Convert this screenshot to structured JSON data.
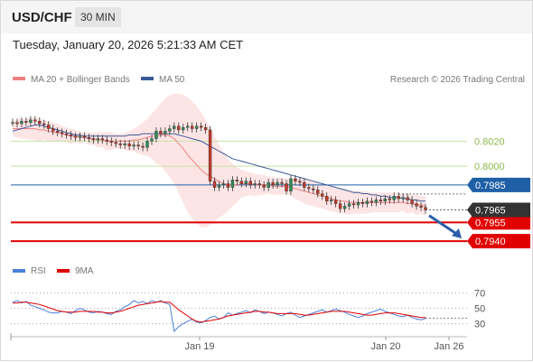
{
  "header": {
    "symbol": "USD/CHF",
    "timeframe": "30 MIN",
    "datetime": "Tuesday, January 20, 2026 5:21:33 AM CET"
  },
  "legend": {
    "ma20_bb": "MA 20 + Bollinger Bands",
    "ma50": "MA 50",
    "copyright": "Research © 2026 Trading Central",
    "rsi": "RSI",
    "rsi_ma": "9MA"
  },
  "colors": {
    "ma20": "#f08080",
    "bands": "#fcdcdc",
    "ma50": "#3a5a98",
    "resistance": "#1f5fa6",
    "support": "#e00000",
    "target_green": "#c5e3a5",
    "arrow": "#2c5fa8",
    "rsi": "#4a7fd8",
    "rsi_ma": "#e00000"
  },
  "chart_data": [
    {
      "type": "candlestick",
      "title": "USD/CHF",
      "x_tick_labels": [
        "Jan 19",
        "Jan 20",
        "Jan 26"
      ],
      "ylim": [
        0.793,
        0.806
      ],
      "price_levels": [
        {
          "value": 0.802,
          "label": "0.8020",
          "kind": "target"
        },
        {
          "value": 0.8,
          "label": "0.8000",
          "kind": "target"
        },
        {
          "value": 0.7985,
          "label": "0.7985",
          "kind": "resistance"
        },
        {
          "value": 0.7955,
          "label": "0.7955",
          "kind": "support"
        },
        {
          "value": 0.794,
          "label": "0.7940",
          "kind": "support"
        }
      ],
      "last_price": {
        "value": 0.7965,
        "label": "0.7965"
      },
      "forecast_arrow": {
        "from": 0.7962,
        "to": 0.794
      },
      "closes": [
        0.8035,
        0.8034,
        0.8036,
        0.8035,
        0.8037,
        0.8036,
        0.8034,
        0.8033,
        0.803,
        0.8028,
        0.8027,
        0.8026,
        0.8025,
        0.8024,
        0.8023,
        0.8024,
        0.8023,
        0.8022,
        0.8021,
        0.8022,
        0.8021,
        0.802,
        0.8019,
        0.8018,
        0.8017,
        0.8018,
        0.8016,
        0.8017,
        0.8016,
        0.8015,
        0.802,
        0.8022,
        0.8028,
        0.8026,
        0.8028,
        0.803,
        0.8032,
        0.8029,
        0.8031,
        0.8032,
        0.803,
        0.8032,
        0.8031,
        0.8029,
        0.7988,
        0.7983,
        0.7985,
        0.7986,
        0.7983,
        0.7989,
        0.7988,
        0.7986,
        0.7988,
        0.7985,
        0.7986,
        0.7985,
        0.7983,
        0.7987,
        0.7985,
        0.7987,
        0.7986,
        0.798,
        0.799,
        0.7988,
        0.7987,
        0.7983,
        0.7982,
        0.7981,
        0.7978,
        0.7976,
        0.7972,
        0.7973,
        0.797,
        0.7966,
        0.7968,
        0.797,
        0.7969,
        0.7971,
        0.797,
        0.7972,
        0.7971,
        0.7973,
        0.7972,
        0.7974,
        0.7973,
        0.7976,
        0.7974,
        0.7975,
        0.7973,
        0.797,
        0.7968,
        0.7967,
        0.7965
      ],
      "ma20": [
        0.803,
        0.803,
        0.803,
        0.803,
        0.803,
        0.803,
        0.8029,
        0.8029,
        0.8028,
        0.8027,
        0.8027,
        0.8026,
        0.8025,
        0.8024,
        0.8024,
        0.8023,
        0.8023,
        0.8022,
        0.8022,
        0.8021,
        0.8021,
        0.802,
        0.802,
        0.802,
        0.802,
        0.802,
        0.802,
        0.8021,
        0.8021,
        0.8022,
        0.8023,
        0.8024,
        0.8024,
        0.8025,
        0.8025,
        0.8024,
        0.8022,
        0.8018,
        0.8014,
        0.8009,
        0.8005,
        0.8001,
        0.7997,
        0.7994,
        0.7992,
        0.799,
        0.7988,
        0.7986,
        0.7985,
        0.7985,
        0.7985,
        0.7986,
        0.7986,
        0.7986,
        0.7985,
        0.7985,
        0.7985,
        0.7985,
        0.7984,
        0.7984,
        0.7984,
        0.7984,
        0.7983,
        0.7982,
        0.7981,
        0.798,
        0.7979,
        0.7978,
        0.7977,
        0.7976,
        0.7975,
        0.7974,
        0.7973,
        0.7972,
        0.7972,
        0.7971,
        0.7971,
        0.7971,
        0.7971,
        0.7971,
        0.7971,
        0.7971,
        0.7971,
        0.7971,
        0.7971,
        0.7971,
        0.7971,
        0.7971,
        0.797,
        0.797,
        0.7969,
        0.7969,
        0.7968
      ],
      "ma50": [
        0.8028,
        0.8029,
        0.803,
        0.8031,
        0.8032,
        0.8033,
        0.8033,
        0.8032,
        0.8031,
        0.803,
        0.8029,
        0.8028,
        0.8027,
        0.8026,
        0.8025,
        0.8025,
        0.8024,
        0.8024,
        0.8024,
        0.8024,
        0.8024,
        0.8024,
        0.8024,
        0.8024,
        0.8024,
        0.8024,
        0.8025,
        0.8025,
        0.8025,
        0.8026,
        0.8026,
        0.8026,
        0.8026,
        0.8026,
        0.8026,
        0.8026,
        0.8026,
        0.8025,
        0.8024,
        0.8023,
        0.8022,
        0.8021,
        0.802,
        0.8018,
        0.8016,
        0.8014,
        0.8012,
        0.801,
        0.8008,
        0.8006,
        0.8005,
        0.8004,
        0.8003,
        0.8002,
        0.8001,
        0.8,
        0.7999,
        0.7998,
        0.7997,
        0.7996,
        0.7995,
        0.7994,
        0.7993,
        0.7992,
        0.7991,
        0.799,
        0.7989,
        0.7988,
        0.7987,
        0.7986,
        0.7985,
        0.7984,
        0.7983,
        0.7982,
        0.7981,
        0.798,
        0.7979,
        0.7979,
        0.7978,
        0.7978,
        0.7977,
        0.7977,
        0.7976,
        0.7976,
        0.7975,
        0.7975,
        0.7975,
        0.7974,
        0.7974,
        0.7973,
        0.7973,
        0.7972,
        0.7972
      ],
      "bb_upper": [
        0.8036,
        0.8037,
        0.8038,
        0.8038,
        0.8039,
        0.8039,
        0.8038,
        0.8037,
        0.8036,
        0.8035,
        0.8034,
        0.8032,
        0.8031,
        0.803,
        0.8029,
        0.8028,
        0.8027,
        0.8027,
        0.8027,
        0.8027,
        0.8027,
        0.8027,
        0.8027,
        0.8026,
        0.8026,
        0.8027,
        0.8028,
        0.803,
        0.8032,
        0.8035,
        0.8038,
        0.8042,
        0.8046,
        0.805,
        0.8054,
        0.8057,
        0.8058,
        0.8058,
        0.8057,
        0.8055,
        0.8052,
        0.8048,
        0.8043,
        0.8037,
        0.8031,
        0.8024,
        0.8017,
        0.8011,
        0.8006,
        0.8002,
        0.7999,
        0.7997,
        0.7996,
        0.7995,
        0.7994,
        0.7993,
        0.7993,
        0.7992,
        0.7991,
        0.7991,
        0.7991,
        0.799,
        0.799,
        0.799,
        0.799,
        0.799,
        0.7989,
        0.7988,
        0.7987,
        0.7986,
        0.7985,
        0.7984,
        0.7983,
        0.7982,
        0.7982,
        0.7981,
        0.798,
        0.798,
        0.798,
        0.798,
        0.7979,
        0.7979,
        0.7979,
        0.7979,
        0.7979,
        0.7979,
        0.7979,
        0.7978,
        0.7978,
        0.7977,
        0.7977,
        0.7976,
        0.7976
      ],
      "bb_lower": [
        0.8024,
        0.8023,
        0.8022,
        0.8022,
        0.8021,
        0.8021,
        0.802,
        0.8021,
        0.802,
        0.8019,
        0.802,
        0.802,
        0.8019,
        0.8018,
        0.8019,
        0.8018,
        0.8019,
        0.8017,
        0.8017,
        0.8015,
        0.8015,
        0.8013,
        0.8013,
        0.8014,
        0.8014,
        0.8013,
        0.8012,
        0.8012,
        0.801,
        0.8009,
        0.8008,
        0.8006,
        0.8002,
        0.8,
        0.7996,
        0.7991,
        0.7986,
        0.7978,
        0.7971,
        0.7963,
        0.7958,
        0.7954,
        0.7951,
        0.7951,
        0.7953,
        0.7956,
        0.7959,
        0.7961,
        0.7964,
        0.7968,
        0.7971,
        0.7975,
        0.7976,
        0.7977,
        0.7976,
        0.7977,
        0.7977,
        0.7978,
        0.7977,
        0.7977,
        0.7977,
        0.7978,
        0.7976,
        0.7974,
        0.7972,
        0.797,
        0.7969,
        0.7968,
        0.7967,
        0.7966,
        0.7965,
        0.7964,
        0.7963,
        0.7962,
        0.7962,
        0.7961,
        0.7962,
        0.7962,
        0.7962,
        0.7962,
        0.7963,
        0.7963,
        0.7963,
        0.7963,
        0.7963,
        0.7963,
        0.7963,
        0.7964,
        0.7962,
        0.7963,
        0.7961,
        0.7962,
        0.796
      ]
    },
    {
      "type": "line",
      "title": "RSI",
      "ylim": [
        20,
        80
      ],
      "y_ticks": [
        70,
        50,
        30
      ],
      "series": [
        {
          "name": "RSI",
          "values": [
            58,
            60,
            57,
            59,
            54,
            52,
            50,
            48,
            45,
            44,
            44,
            46,
            45,
            43,
            47,
            50,
            48,
            45,
            44,
            46,
            45,
            43,
            42,
            46,
            48,
            52,
            55,
            60,
            57,
            59,
            56,
            60,
            58,
            60,
            57,
            55,
            20,
            26,
            30,
            33,
            36,
            32,
            31,
            34,
            38,
            40,
            36,
            38,
            44,
            41,
            43,
            45,
            47,
            44,
            48,
            46,
            43,
            45,
            44,
            42,
            40,
            43,
            45,
            41,
            38,
            40,
            42,
            44,
            46,
            48,
            45,
            47,
            49,
            47,
            45,
            42,
            40,
            38,
            40,
            43,
            45,
            47,
            49,
            46,
            44,
            42,
            40,
            39,
            41,
            38,
            36,
            35,
            37
          ]
        },
        {
          "name": "9MA",
          "values": [
            57,
            57,
            58,
            58,
            57,
            56,
            55,
            53,
            51,
            49,
            47,
            46,
            45,
            45,
            45,
            46,
            46,
            46,
            46,
            45,
            45,
            44,
            44,
            45,
            46,
            48,
            50,
            52,
            54,
            55,
            56,
            57,
            58,
            59,
            58,
            58,
            53,
            48,
            44,
            40,
            36,
            33,
            32,
            33,
            34,
            35,
            36,
            38,
            40,
            41,
            42,
            43,
            44,
            45,
            46,
            46,
            45,
            45,
            44,
            43,
            43,
            43,
            43,
            43,
            42,
            41,
            41,
            42,
            43,
            44,
            45,
            46,
            46,
            46,
            46,
            45,
            44,
            43,
            42,
            41,
            41,
            42,
            43,
            44,
            44,
            44,
            43,
            42,
            41,
            40,
            39,
            38,
            38
          ]
        }
      ]
    }
  ]
}
